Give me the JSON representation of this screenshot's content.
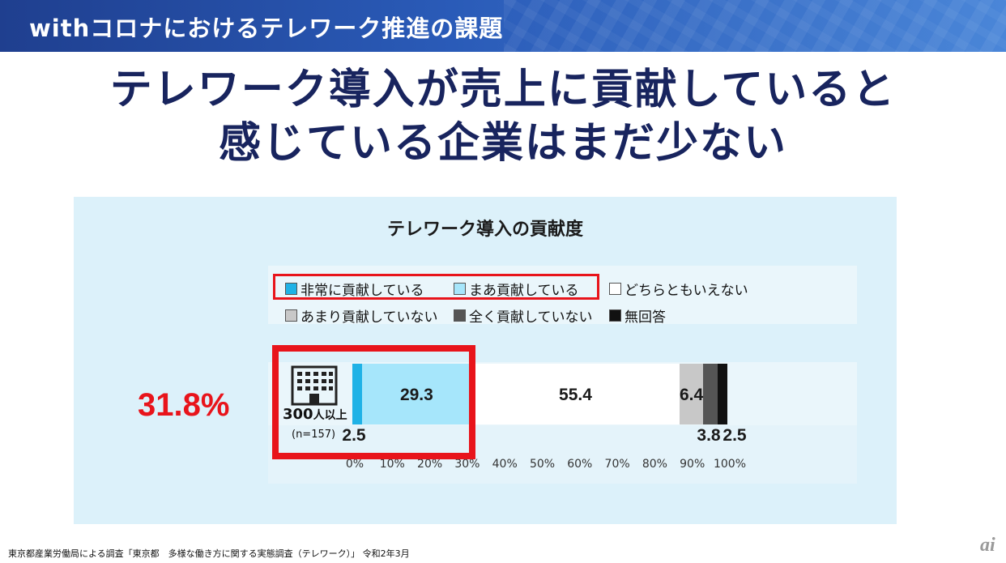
{
  "header": {
    "title": "withコロナにおけるテレワーク推進の課題"
  },
  "headline": {
    "line1": "テレワーク導入が売上に貢献していると",
    "line2": "感じている企業はまだ少ない"
  },
  "highlight": {
    "total_label": "31.8%"
  },
  "source": "東京都産業労働局による調査「東京都　多様な働き方に関する実態調査（テレワーク）」 令和2年3月",
  "logo": "ai",
  "chart_data": {
    "type": "bar",
    "orientation": "horizontal-stacked",
    "title": "テレワーク導入の貢献度",
    "categories": [
      "300人以上"
    ],
    "category_note": "(n=157)",
    "category_label_main": "300",
    "category_label_suffix": "人以上",
    "series": [
      {
        "name": "非常に貢献している",
        "values": [
          2.5
        ],
        "color": "#1fb2e6",
        "label": "2.5",
        "label_pos": "below"
      },
      {
        "name": "まあ貢献している",
        "values": [
          29.3
        ],
        "color": "#a6e6fb",
        "label": "29.3",
        "label_pos": "inside"
      },
      {
        "name": "どちらともいえない",
        "values": [
          55.4
        ],
        "color": "#ffffff",
        "label": "55.4",
        "label_pos": "inside"
      },
      {
        "name": "あまり貢献していない",
        "values": [
          6.4
        ],
        "color": "#c8c8c8",
        "label": "6.4",
        "label_pos": "inside"
      },
      {
        "name": "全く貢献していない",
        "values": [
          3.8
        ],
        "color": "#555555",
        "label": "3.8",
        "label_pos": "below"
      },
      {
        "name": "無回答",
        "values": [
          2.5
        ],
        "color": "#111111",
        "label": "2.5",
        "label_pos": "below"
      }
    ],
    "xlim": [
      0,
      100
    ],
    "xticks": [
      "0%",
      "10%",
      "20%",
      "30%",
      "40%",
      "50%",
      "60%",
      "70%",
      "80%",
      "90%",
      "100%"
    ],
    "legend": "top",
    "highlighted_series": [
      "非常に貢献している",
      "まあ貢献している"
    ]
  }
}
